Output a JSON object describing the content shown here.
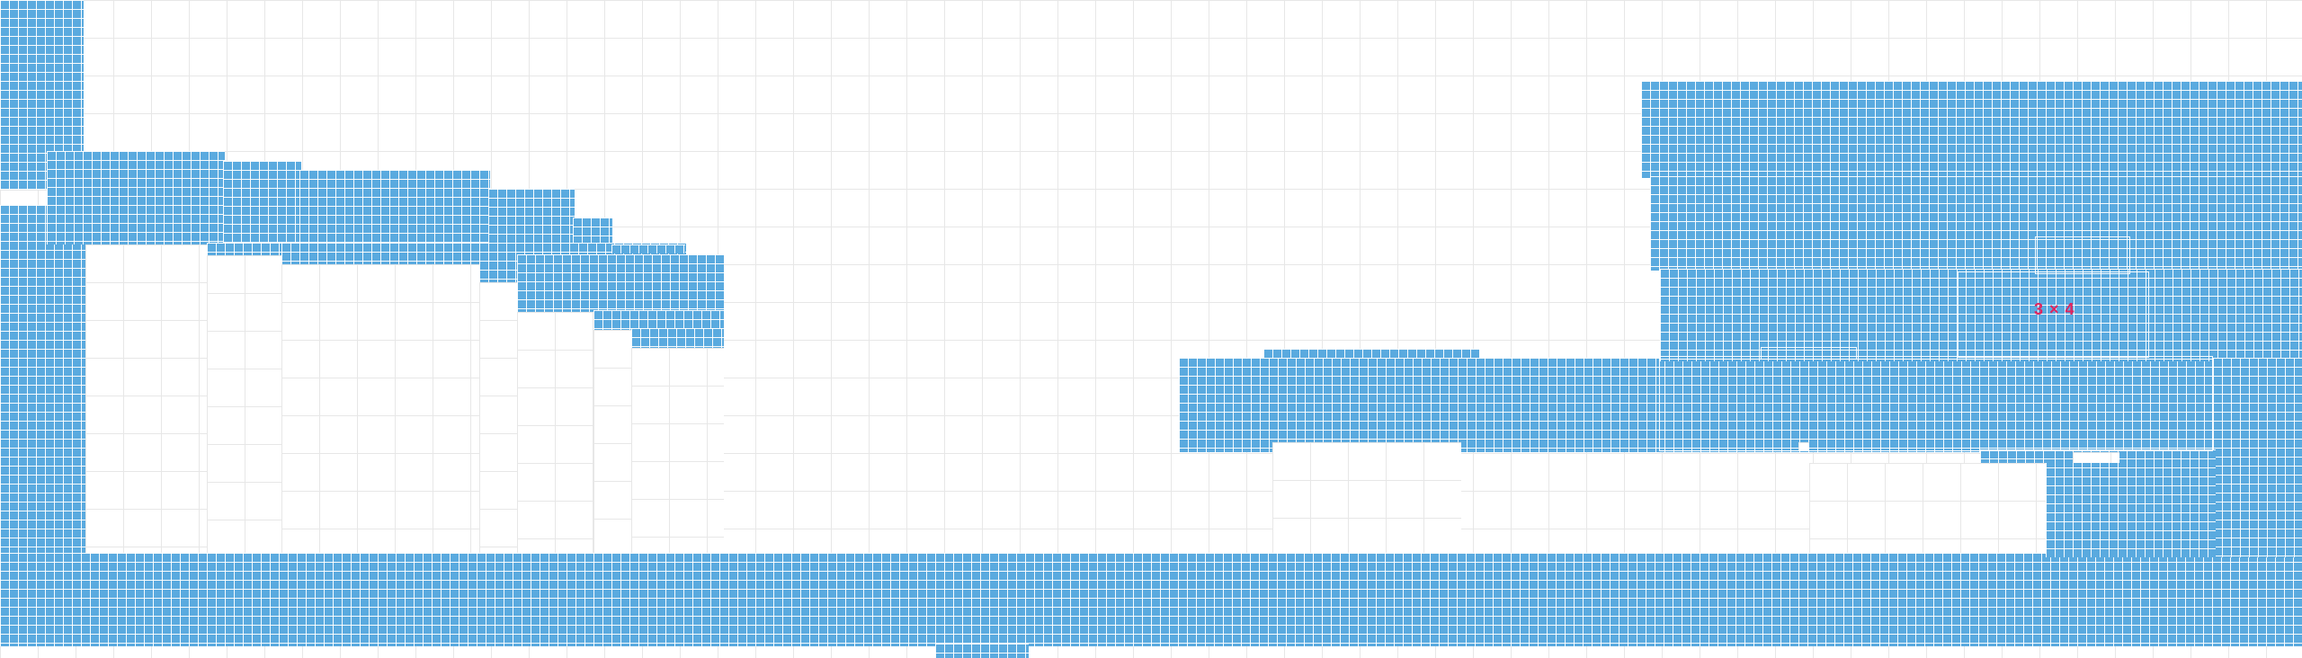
{
  "canvas": {
    "background": "#ffffff",
    "grid_line_color": "#e7e7e7"
  },
  "tiles": {
    "fill_color": "#5aaadf",
    "grout_color": "#ffffff"
  },
  "label": {
    "text": "3 × 4",
    "color": "#e0245e"
  }
}
